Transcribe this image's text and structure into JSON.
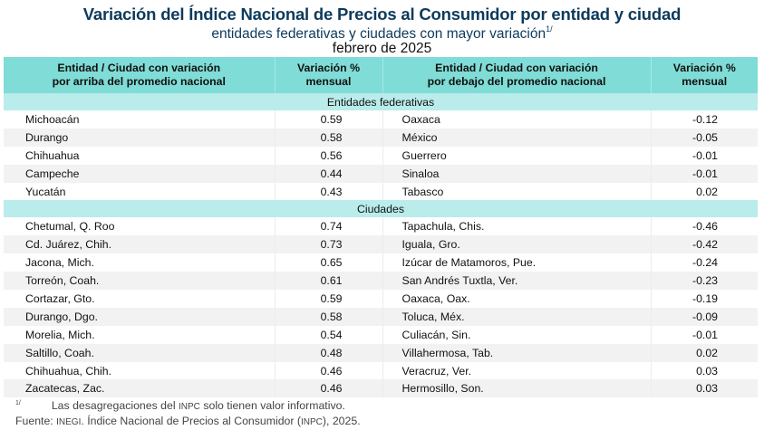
{
  "title": "Variación del Índice Nacional de Precios al Consumidor por entidad y ciudad",
  "subtitle": "entidades federativas y ciudades con mayor variación",
  "subtitle_note": "1/",
  "period": "febrero de 2025",
  "colors": {
    "header_bg": "#7fdcd6",
    "section_bg": "#b9ecea",
    "stripe_bg": "#f2f2f2",
    "title": "#0d3a5c"
  },
  "headers": {
    "col1_line1": "Entidad / Ciudad con variación",
    "col1_line2": "por arriba del promedio nacional",
    "col2_line1": "Variación %",
    "col2_line2": "mensual",
    "col3_line1": "Entidad / Ciudad con variación",
    "col3_line2": "por debajo del promedio nacional",
    "col4_line1": "Variación %",
    "col4_line2": "mensual"
  },
  "sections": [
    {
      "label": "Entidades federativas",
      "rows": [
        {
          "above": "Michoacán",
          "above_val": "0.59",
          "below": "Oaxaca",
          "below_val": "-0.12"
        },
        {
          "above": "Durango",
          "above_val": "0.58",
          "below": "México",
          "below_val": "-0.05"
        },
        {
          "above": "Chihuahua",
          "above_val": "0.56",
          "below": "Guerrero",
          "below_val": "-0.01"
        },
        {
          "above": "Campeche",
          "above_val": "0.44",
          "below": "Sinaloa",
          "below_val": "-0.01"
        },
        {
          "above": "Yucatán",
          "above_val": "0.43",
          "below": "Tabasco",
          "below_val": "0.02"
        }
      ]
    },
    {
      "label": "Ciudades",
      "rows": [
        {
          "above": "Chetumal, Q. Roo",
          "above_val": "0.74",
          "below": "Tapachula, Chis.",
          "below_val": "-0.46"
        },
        {
          "above": "Cd. Juárez, Chih.",
          "above_val": "0.73",
          "below": "Iguala, Gro.",
          "below_val": "-0.42"
        },
        {
          "above": "Jacona, Mich.",
          "above_val": "0.65",
          "below": "Izúcar de Matamoros, Pue.",
          "below_val": "-0.24"
        },
        {
          "above": "Torreón, Coah.",
          "above_val": "0.61",
          "below": "San Andrés Tuxtla, Ver.",
          "below_val": "-0.23"
        },
        {
          "above": "Cortazar, Gto.",
          "above_val": "0.59",
          "below": "Oaxaca, Oax.",
          "below_val": "-0.19"
        },
        {
          "above": "Durango, Dgo.",
          "above_val": "0.58",
          "below": "Toluca, Méx.",
          "below_val": "-0.09"
        },
        {
          "above": "Morelia, Mich.",
          "above_val": "0.54",
          "below": "Culiacán, Sin.",
          "below_val": "-0.01"
        },
        {
          "above": "Saltillo, Coah.",
          "above_val": "0.48",
          "below": "Villahermosa, Tab.",
          "below_val": "0.02"
        },
        {
          "above": "Chihuahua, Chih.",
          "above_val": "0.46",
          "below": "Veracruz, Ver.",
          "below_val": "0.03"
        },
        {
          "above": "Zacatecas, Zac.",
          "above_val": "0.46",
          "below": "Hermosillo, Son.",
          "below_val": "0.03"
        }
      ]
    }
  ],
  "footnote": {
    "marker": "1/",
    "text_before": "Las desagregaciones del",
    "abbr": "INPC",
    "text_after": "solo tienen valor informativo."
  },
  "source": {
    "label": "Fuente:",
    "org": "INEGI",
    "text": ". Índice Nacional de Precios al Consumidor (",
    "abbr": "INPC",
    "tail": "), 2025."
  }
}
